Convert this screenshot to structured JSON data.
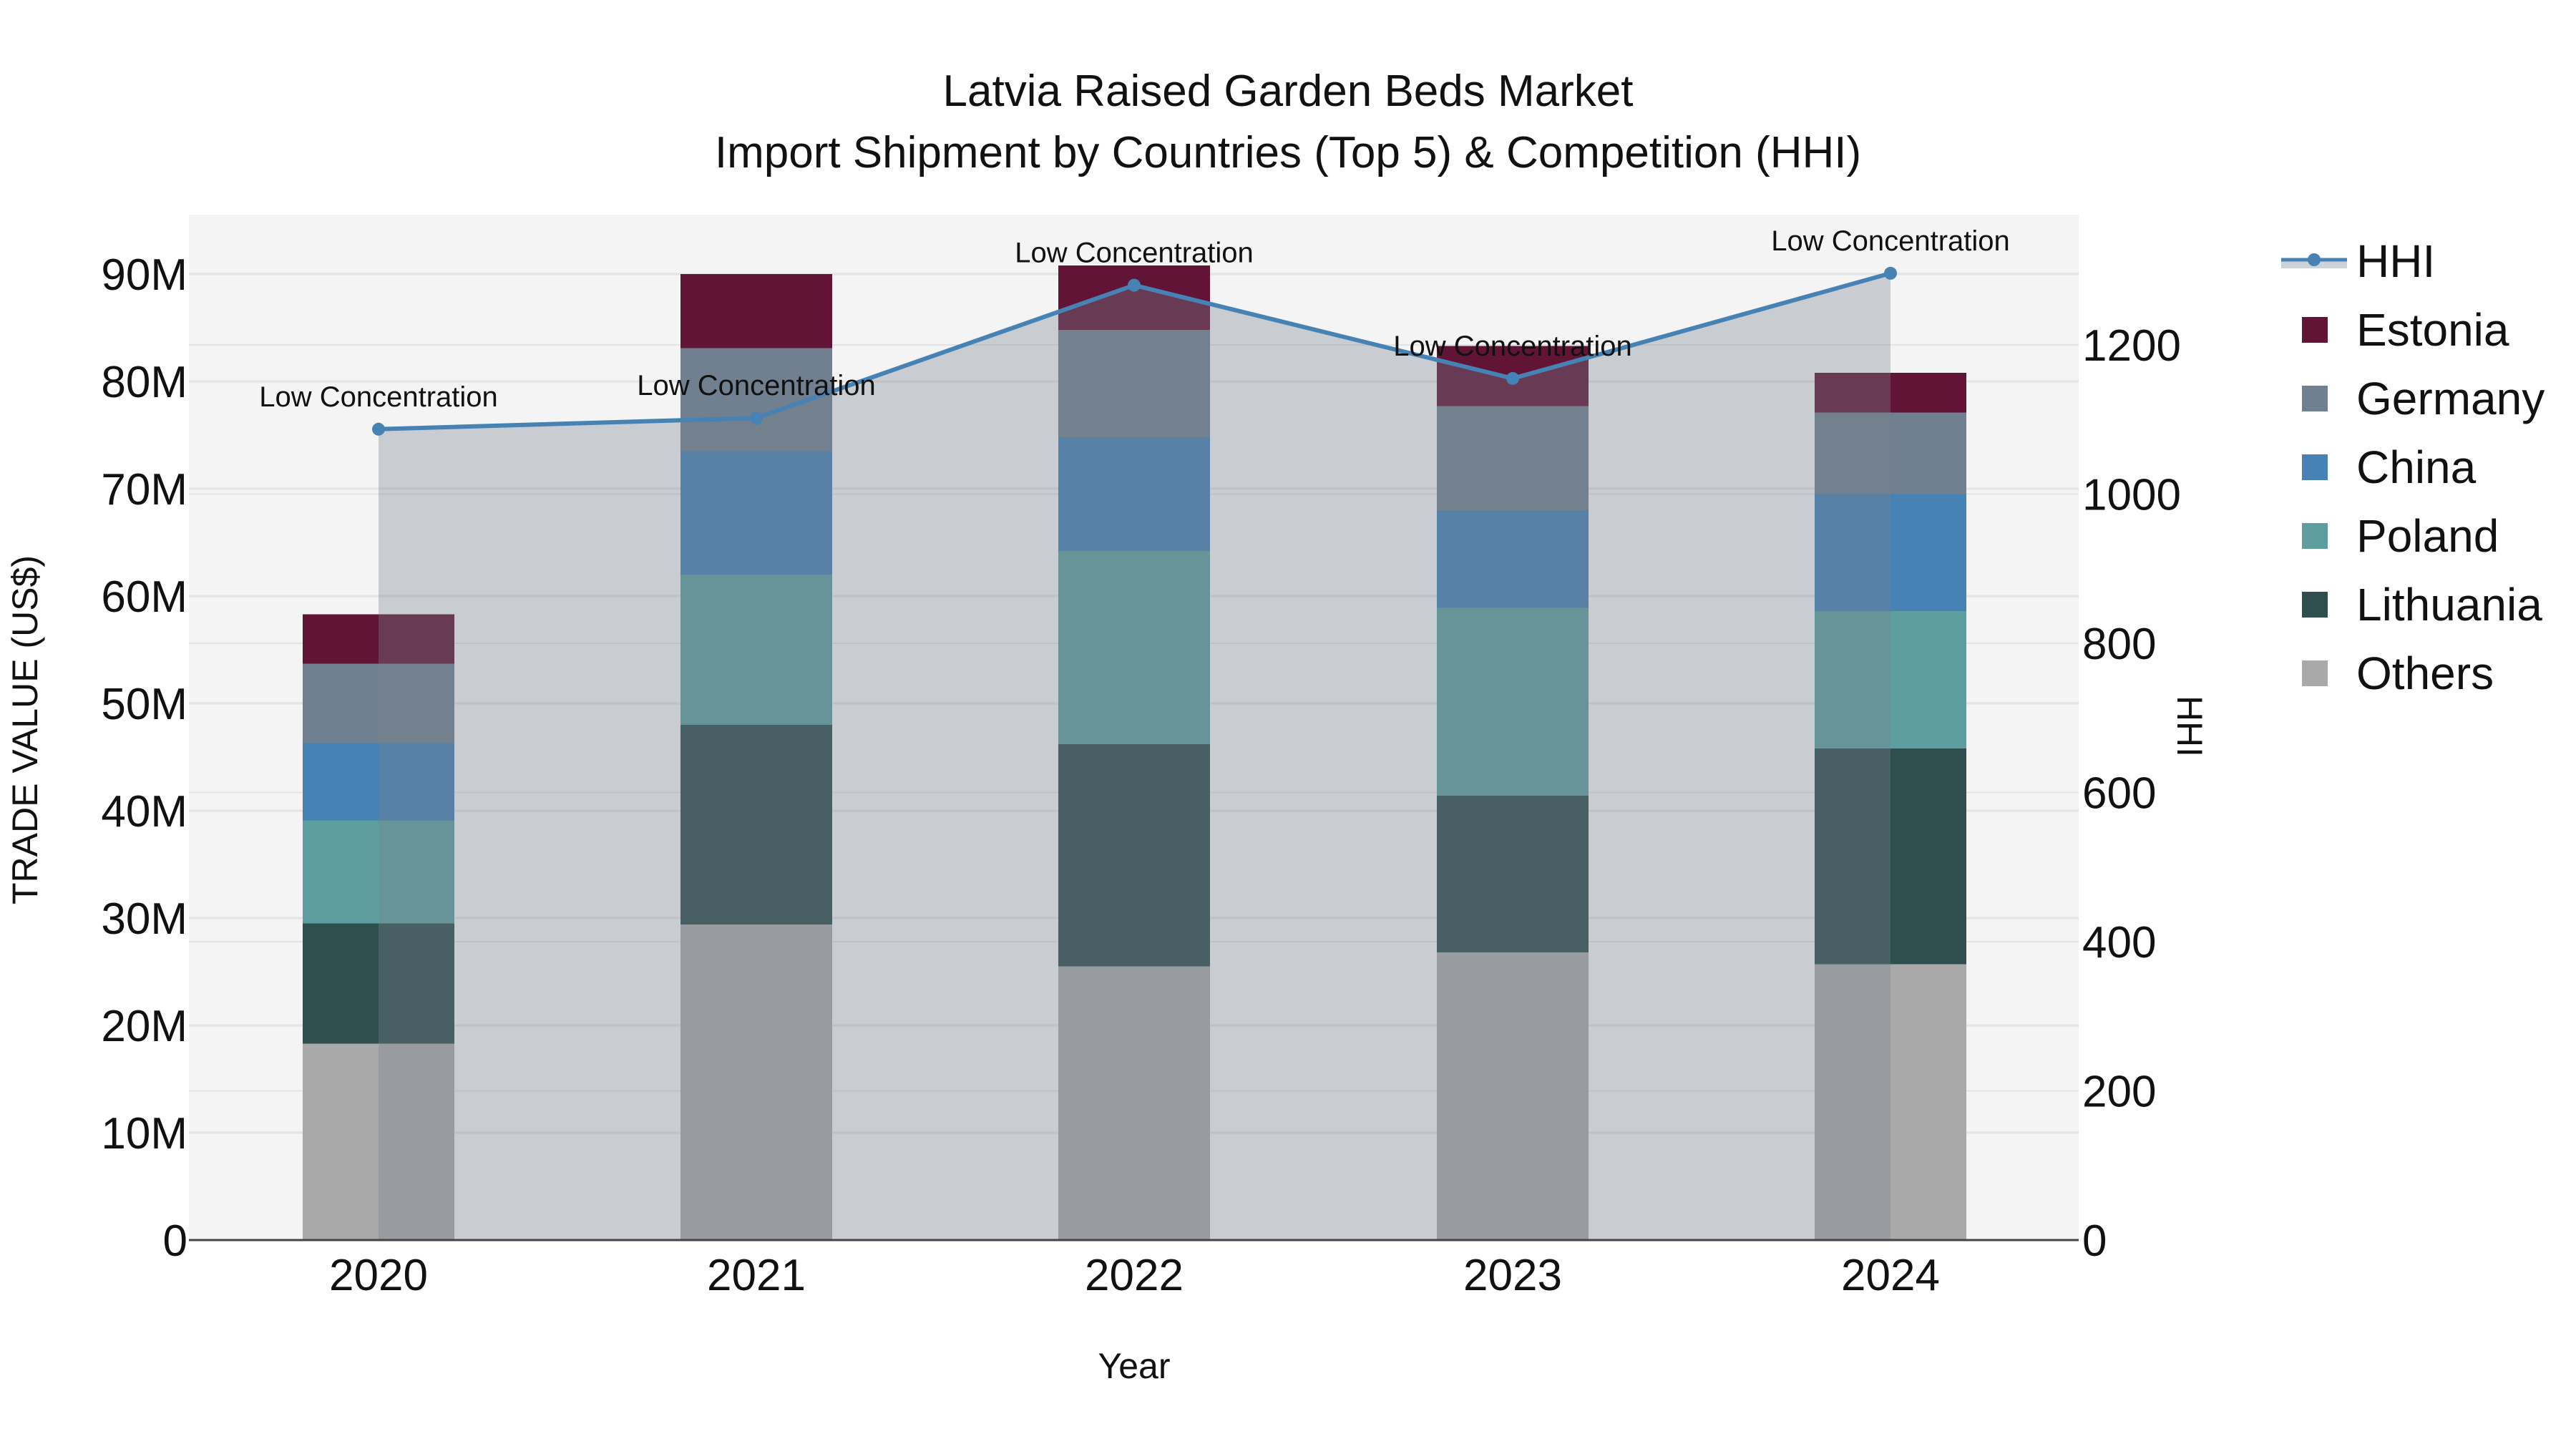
{
  "title": {
    "line1": "Latvia Raised Garden Beds Market",
    "line2": "Import Shipment by Countries (Top 5) & Competition (HHI)"
  },
  "axes": {
    "x_title": "Year",
    "y_left_title": "TRADE VALUE (US$)",
    "y_right_title": "HHI",
    "y_left_ticks": [
      "0",
      "10M",
      "20M",
      "30M",
      "40M",
      "50M",
      "60M",
      "70M",
      "80M",
      "90M"
    ],
    "y_right_ticks": [
      "0",
      "200",
      "400",
      "600",
      "800",
      "1000",
      "1200"
    ]
  },
  "legend": {
    "items": [
      {
        "label": "HHI",
        "type": "line",
        "color": "#4682b4"
      },
      {
        "label": "Estonia",
        "type": "bar",
        "color": "#621436"
      },
      {
        "label": "Germany",
        "type": "bar",
        "color": "#708090"
      },
      {
        "label": "China",
        "type": "bar",
        "color": "#4682b4"
      },
      {
        "label": "Poland",
        "type": "bar",
        "color": "#5f9ea0"
      },
      {
        "label": "Lithuania",
        "type": "bar",
        "color": "#2f4f4f"
      },
      {
        "label": "Others",
        "type": "bar",
        "color": "#a9a9a9"
      }
    ]
  },
  "colors": {
    "plot_bg": "#f4f4f4",
    "grid": "#e3e3e3",
    "hhi_line": "#4682b4",
    "hhi_fill": "rgba(119,128,141,0.35)"
  },
  "chart_data": {
    "type": "bar",
    "stacked": true,
    "title": "Latvia Raised Garden Beds Market — Import Shipment by Countries (Top 5) & Competition (HHI)",
    "xlabel": "Year",
    "ylabel": "TRADE VALUE (US$)",
    "y2label": "HHI",
    "categories": [
      "2020",
      "2021",
      "2022",
      "2023",
      "2024"
    ],
    "ylim": [
      0,
      95000000
    ],
    "y2lim": [
      0,
      1370
    ],
    "series": [
      {
        "name": "Others",
        "color": "#a9a9a9",
        "values": [
          18300000,
          29400000,
          25500000,
          26800000,
          25700000
        ]
      },
      {
        "name": "Lithuania",
        "color": "#2f4f4f",
        "values": [
          11200000,
          18600000,
          20700000,
          14600000,
          20100000
        ]
      },
      {
        "name": "Poland",
        "color": "#5f9ea0",
        "values": [
          9600000,
          14000000,
          18000000,
          17500000,
          12800000
        ]
      },
      {
        "name": "China",
        "color": "#4682b4",
        "values": [
          7200000,
          11500000,
          10600000,
          9100000,
          10900000
        ]
      },
      {
        "name": "Germany",
        "color": "#708090",
        "values": [
          7400000,
          9600000,
          10000000,
          9700000,
          7600000
        ]
      },
      {
        "name": "Estonia",
        "color": "#621436",
        "values": [
          4600000,
          6900000,
          6000000,
          5600000,
          3700000
        ]
      }
    ],
    "hhi": {
      "name": "HHI",
      "type": "line+area",
      "axis": "right",
      "values": [
        1087,
        1102,
        1280,
        1155,
        1296
      ],
      "annotations": [
        "Low Concentration",
        "Low Concentration",
        "Low Concentration",
        "Low Concentration",
        "Low Concentration"
      ]
    },
    "legend_position": "right",
    "grid": true
  }
}
